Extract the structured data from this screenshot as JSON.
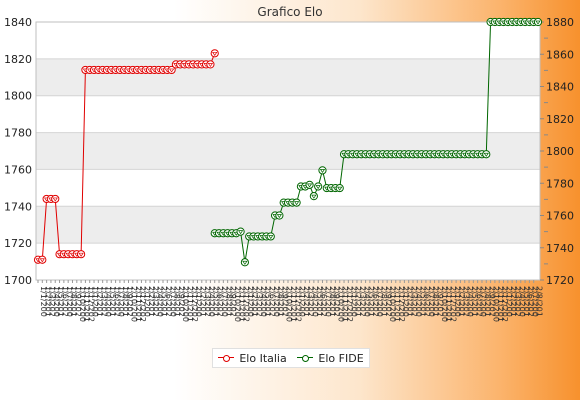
{
  "chart_data": {
    "type": "line",
    "title": "Grafico Elo",
    "xlabel": "",
    "ylabel": "",
    "grid": true,
    "legend_position": "bottom",
    "y_left": {
      "ylim": [
        1700,
        1840
      ],
      "ticks": [
        1700,
        1720,
        1740,
        1760,
        1780,
        1800,
        1820,
        1840
      ]
    },
    "y_right": {
      "ylim": [
        1720,
        1880
      ],
      "ticks": [
        1720,
        1740,
        1760,
        1780,
        1800,
        1820,
        1840,
        1860,
        1880
      ]
    },
    "x_count": 60,
    "x_tick_labels": [
      "1",
      "1",
      "1",
      "1",
      "1",
      "2",
      "2",
      "2",
      "2",
      "2",
      "2",
      "2",
      "2",
      "2",
      "2",
      "2",
      "2",
      "2",
      "2",
      "2",
      "2",
      "2",
      "2",
      "2",
      "2",
      "2",
      "2",
      "2"
    ],
    "series": [
      {
        "name": "Elo Italia",
        "color": "#e00000",
        "axis": "left",
        "points": [
          [
            0,
            1711
          ],
          [
            1,
            1711
          ],
          [
            2,
            1744
          ],
          [
            3,
            1744
          ],
          [
            4,
            1744
          ],
          [
            5,
            1714
          ],
          [
            6,
            1714
          ],
          [
            7,
            1714
          ],
          [
            8,
            1714
          ],
          [
            9,
            1714
          ],
          [
            10,
            1714
          ],
          [
            11,
            1814
          ],
          [
            12,
            1814
          ],
          [
            13,
            1814
          ],
          [
            14,
            1814
          ],
          [
            15,
            1814
          ],
          [
            16,
            1814
          ],
          [
            17,
            1814
          ],
          [
            18,
            1814
          ],
          [
            19,
            1814
          ],
          [
            20,
            1814
          ],
          [
            21,
            1814
          ],
          [
            22,
            1814
          ],
          [
            23,
            1814
          ],
          [
            24,
            1814
          ],
          [
            25,
            1814
          ],
          [
            26,
            1814
          ],
          [
            27,
            1814
          ],
          [
            28,
            1814
          ],
          [
            29,
            1814
          ],
          [
            30,
            1814
          ],
          [
            31,
            1814
          ],
          [
            32,
            1817
          ],
          [
            33,
            1817
          ],
          [
            34,
            1817
          ],
          [
            35,
            1817
          ],
          [
            36,
            1817
          ],
          [
            37,
            1817
          ],
          [
            38,
            1817
          ],
          [
            39,
            1817
          ],
          [
            40,
            1817
          ],
          [
            41,
            1823
          ]
        ]
      },
      {
        "name": "Elo FIDE",
        "color": "#006600",
        "axis": "right",
        "points": [
          [
            41,
            1749
          ],
          [
            42,
            1749
          ],
          [
            43,
            1749
          ],
          [
            44,
            1749
          ],
          [
            45,
            1749
          ],
          [
            46,
            1749
          ],
          [
            47,
            1750
          ],
          [
            48,
            1731
          ],
          [
            49,
            1747
          ],
          [
            50,
            1747
          ],
          [
            51,
            1747
          ],
          [
            52,
            1747
          ],
          [
            53,
            1747
          ],
          [
            54,
            1747
          ],
          [
            55,
            1760
          ],
          [
            56,
            1760
          ],
          [
            57,
            1768
          ],
          [
            58,
            1768
          ],
          [
            59,
            1768
          ],
          [
            60,
            1768
          ],
          [
            61,
            1778
          ],
          [
            62,
            1778
          ],
          [
            63,
            1779
          ],
          [
            64,
            1772
          ],
          [
            65,
            1778
          ],
          [
            66,
            1788
          ],
          [
            67,
            1777
          ],
          [
            68,
            1777
          ],
          [
            69,
            1777
          ],
          [
            70,
            1777
          ],
          [
            71,
            1798
          ],
          [
            72,
            1798
          ],
          [
            73,
            1798
          ],
          [
            74,
            1798
          ],
          [
            75,
            1798
          ],
          [
            76,
            1798
          ],
          [
            77,
            1798
          ],
          [
            78,
            1798
          ],
          [
            79,
            1798
          ],
          [
            80,
            1798
          ],
          [
            81,
            1798
          ],
          [
            82,
            1798
          ],
          [
            83,
            1798
          ],
          [
            84,
            1798
          ],
          [
            85,
            1798
          ],
          [
            86,
            1798
          ],
          [
            87,
            1798
          ],
          [
            88,
            1798
          ],
          [
            89,
            1798
          ],
          [
            90,
            1798
          ],
          [
            91,
            1798
          ],
          [
            92,
            1798
          ],
          [
            93,
            1798
          ],
          [
            94,
            1798
          ],
          [
            95,
            1798
          ],
          [
            96,
            1798
          ],
          [
            97,
            1798
          ],
          [
            98,
            1798
          ],
          [
            99,
            1798
          ],
          [
            100,
            1798
          ],
          [
            101,
            1798
          ],
          [
            102,
            1798
          ],
          [
            103,
            1798
          ],
          [
            104,
            1798
          ],
          [
            105,
            1880
          ],
          [
            106,
            1880
          ],
          [
            107,
            1880
          ],
          [
            108,
            1880
          ],
          [
            109,
            1880
          ],
          [
            110,
            1880
          ],
          [
            111,
            1880
          ],
          [
            112,
            1880
          ],
          [
            113,
            1880
          ],
          [
            114,
            1880
          ],
          [
            115,
            1880
          ],
          [
            116,
            1880
          ]
        ]
      }
    ]
  }
}
